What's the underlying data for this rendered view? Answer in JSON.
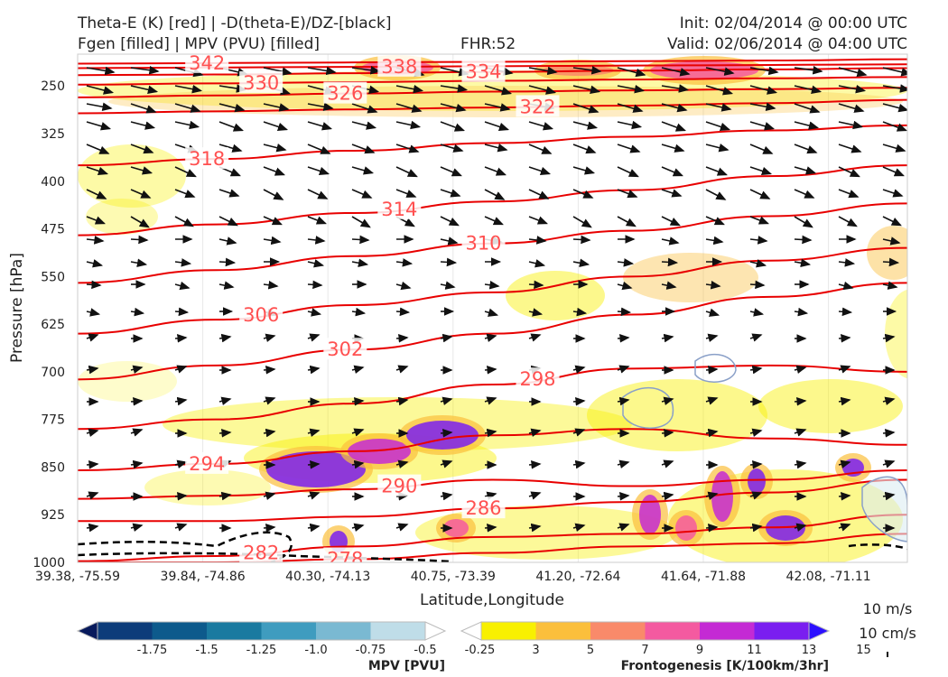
{
  "header": {
    "title_line1": "Theta-E (K) [red] | -D(theta-E)/DZ-[black]",
    "title_line2": "Fgen [filled] | MPV (PVU) [filled]",
    "fhr": "FHR:52",
    "init": "Init: 02/04/2014 @ 00:00 UTC",
    "valid": "Valid: 02/06/2014 @ 04:00 UTC"
  },
  "chart_data": {
    "type": "cross-section",
    "xlabel": "Latitude,Longitude",
    "ylabel": "Pressure [hPa]",
    "x_ticks": [
      "39.38, -75.59",
      "39.84, -74.86",
      "40.30, -74.13",
      "40.75, -73.39",
      "41.20, -72.64",
      "41.64, -71.88",
      "42.08, -71.11"
    ],
    "y_ticks": [
      250,
      325,
      400,
      475,
      550,
      625,
      700,
      775,
      850,
      925,
      1000
    ],
    "ylim": [
      1000,
      200
    ],
    "theta_e_contours": [
      {
        "value": 342,
        "label": "342",
        "y": [
          215,
          214,
          213,
          212,
          211,
          210,
          208
        ]
      },
      {
        "value": 338,
        "label": "338",
        "y": [
          222,
          221,
          220,
          219,
          218,
          217,
          216
        ]
      },
      {
        "value": 334,
        "label": "334",
        "y": [
          233,
          232,
          230,
          228,
          226,
          224,
          222
        ]
      },
      {
        "value": 330,
        "label": "330",
        "y": [
          248,
          246,
          244,
          242,
          240,
          238,
          236
        ]
      },
      {
        "value": 326,
        "label": "326",
        "y": [
          268,
          265,
          262,
          259,
          257,
          255,
          253
        ]
      },
      {
        "value": 322,
        "label": "322",
        "y": [
          293,
          290,
          287,
          284,
          281,
          277,
          272
        ]
      },
      {
        "value": 318,
        "label": "318",
        "y": [
          375,
          365,
          352,
          340,
          330,
          320,
          312
        ]
      },
      {
        "value": 314,
        "label": "314",
        "y": [
          485,
          468,
          450,
          432,
          414,
          392,
          375
        ]
      },
      {
        "value": 310,
        "label": "310",
        "y": [
          560,
          540,
          518,
          498,
          478,
          455,
          435
        ]
      },
      {
        "value": 306,
        "label": "306",
        "y": [
          640,
          618,
          595,
          575,
          550,
          525,
          505
        ]
      },
      {
        "value": 302,
        "label": "302",
        "y": [
          712,
          690,
          665,
          640,
          610,
          582,
          560
        ]
      },
      {
        "value": 298,
        "label": "298",
        "y": [
          790,
          775,
          750,
          720,
          695,
          690,
          700
        ]
      },
      {
        "value": 294,
        "label": "294",
        "y": [
          855,
          845,
          825,
          800,
          790,
          805,
          815
        ]
      },
      {
        "value": 290,
        "label": "290",
        "y": [
          900,
          895,
          885,
          870,
          880,
          870,
          855
        ]
      },
      {
        "value": 286,
        "label": "286",
        "y": [
          935,
          935,
          928,
          915,
          905,
          890,
          870
        ]
      },
      {
        "value": 282,
        "label": "282",
        "y": [
          998,
          990,
          975,
          960,
          955,
          945,
          925
        ]
      },
      {
        "value": 278,
        "label": "278",
        "y": [
          1000,
          1000,
          995,
          985,
          975,
          970,
          955
        ]
      }
    ],
    "fgen_colorbar": {
      "title": "Frontogenesis [K/100km/3hr]",
      "ticks": [
        "3",
        "5",
        "7",
        "9",
        "11",
        "13",
        "15"
      ],
      "colors": [
        "#ffffff",
        "#f8f000",
        "#fbbf3c",
        "#f98a6a",
        "#f45aa0",
        "#c42ad4",
        "#7a1ef0",
        "#2c10ff"
      ]
    },
    "mpv_colorbar": {
      "title": "MPV [PVU]",
      "ticks": [
        "-1.75",
        "-1.5",
        "-1.25",
        "-1.0",
        "-0.75",
        "-0.5",
        "-0.25"
      ],
      "colors": [
        "#081a5c",
        "#0d3c7a",
        "#0d5a8c",
        "#1a7aa0",
        "#3f9cbf",
        "#7ab9d2",
        "#bfdde8",
        "#ffffff"
      ]
    },
    "wind_reference": {
      "label1": "10 m/s",
      "label2": "10 cm/s"
    }
  }
}
